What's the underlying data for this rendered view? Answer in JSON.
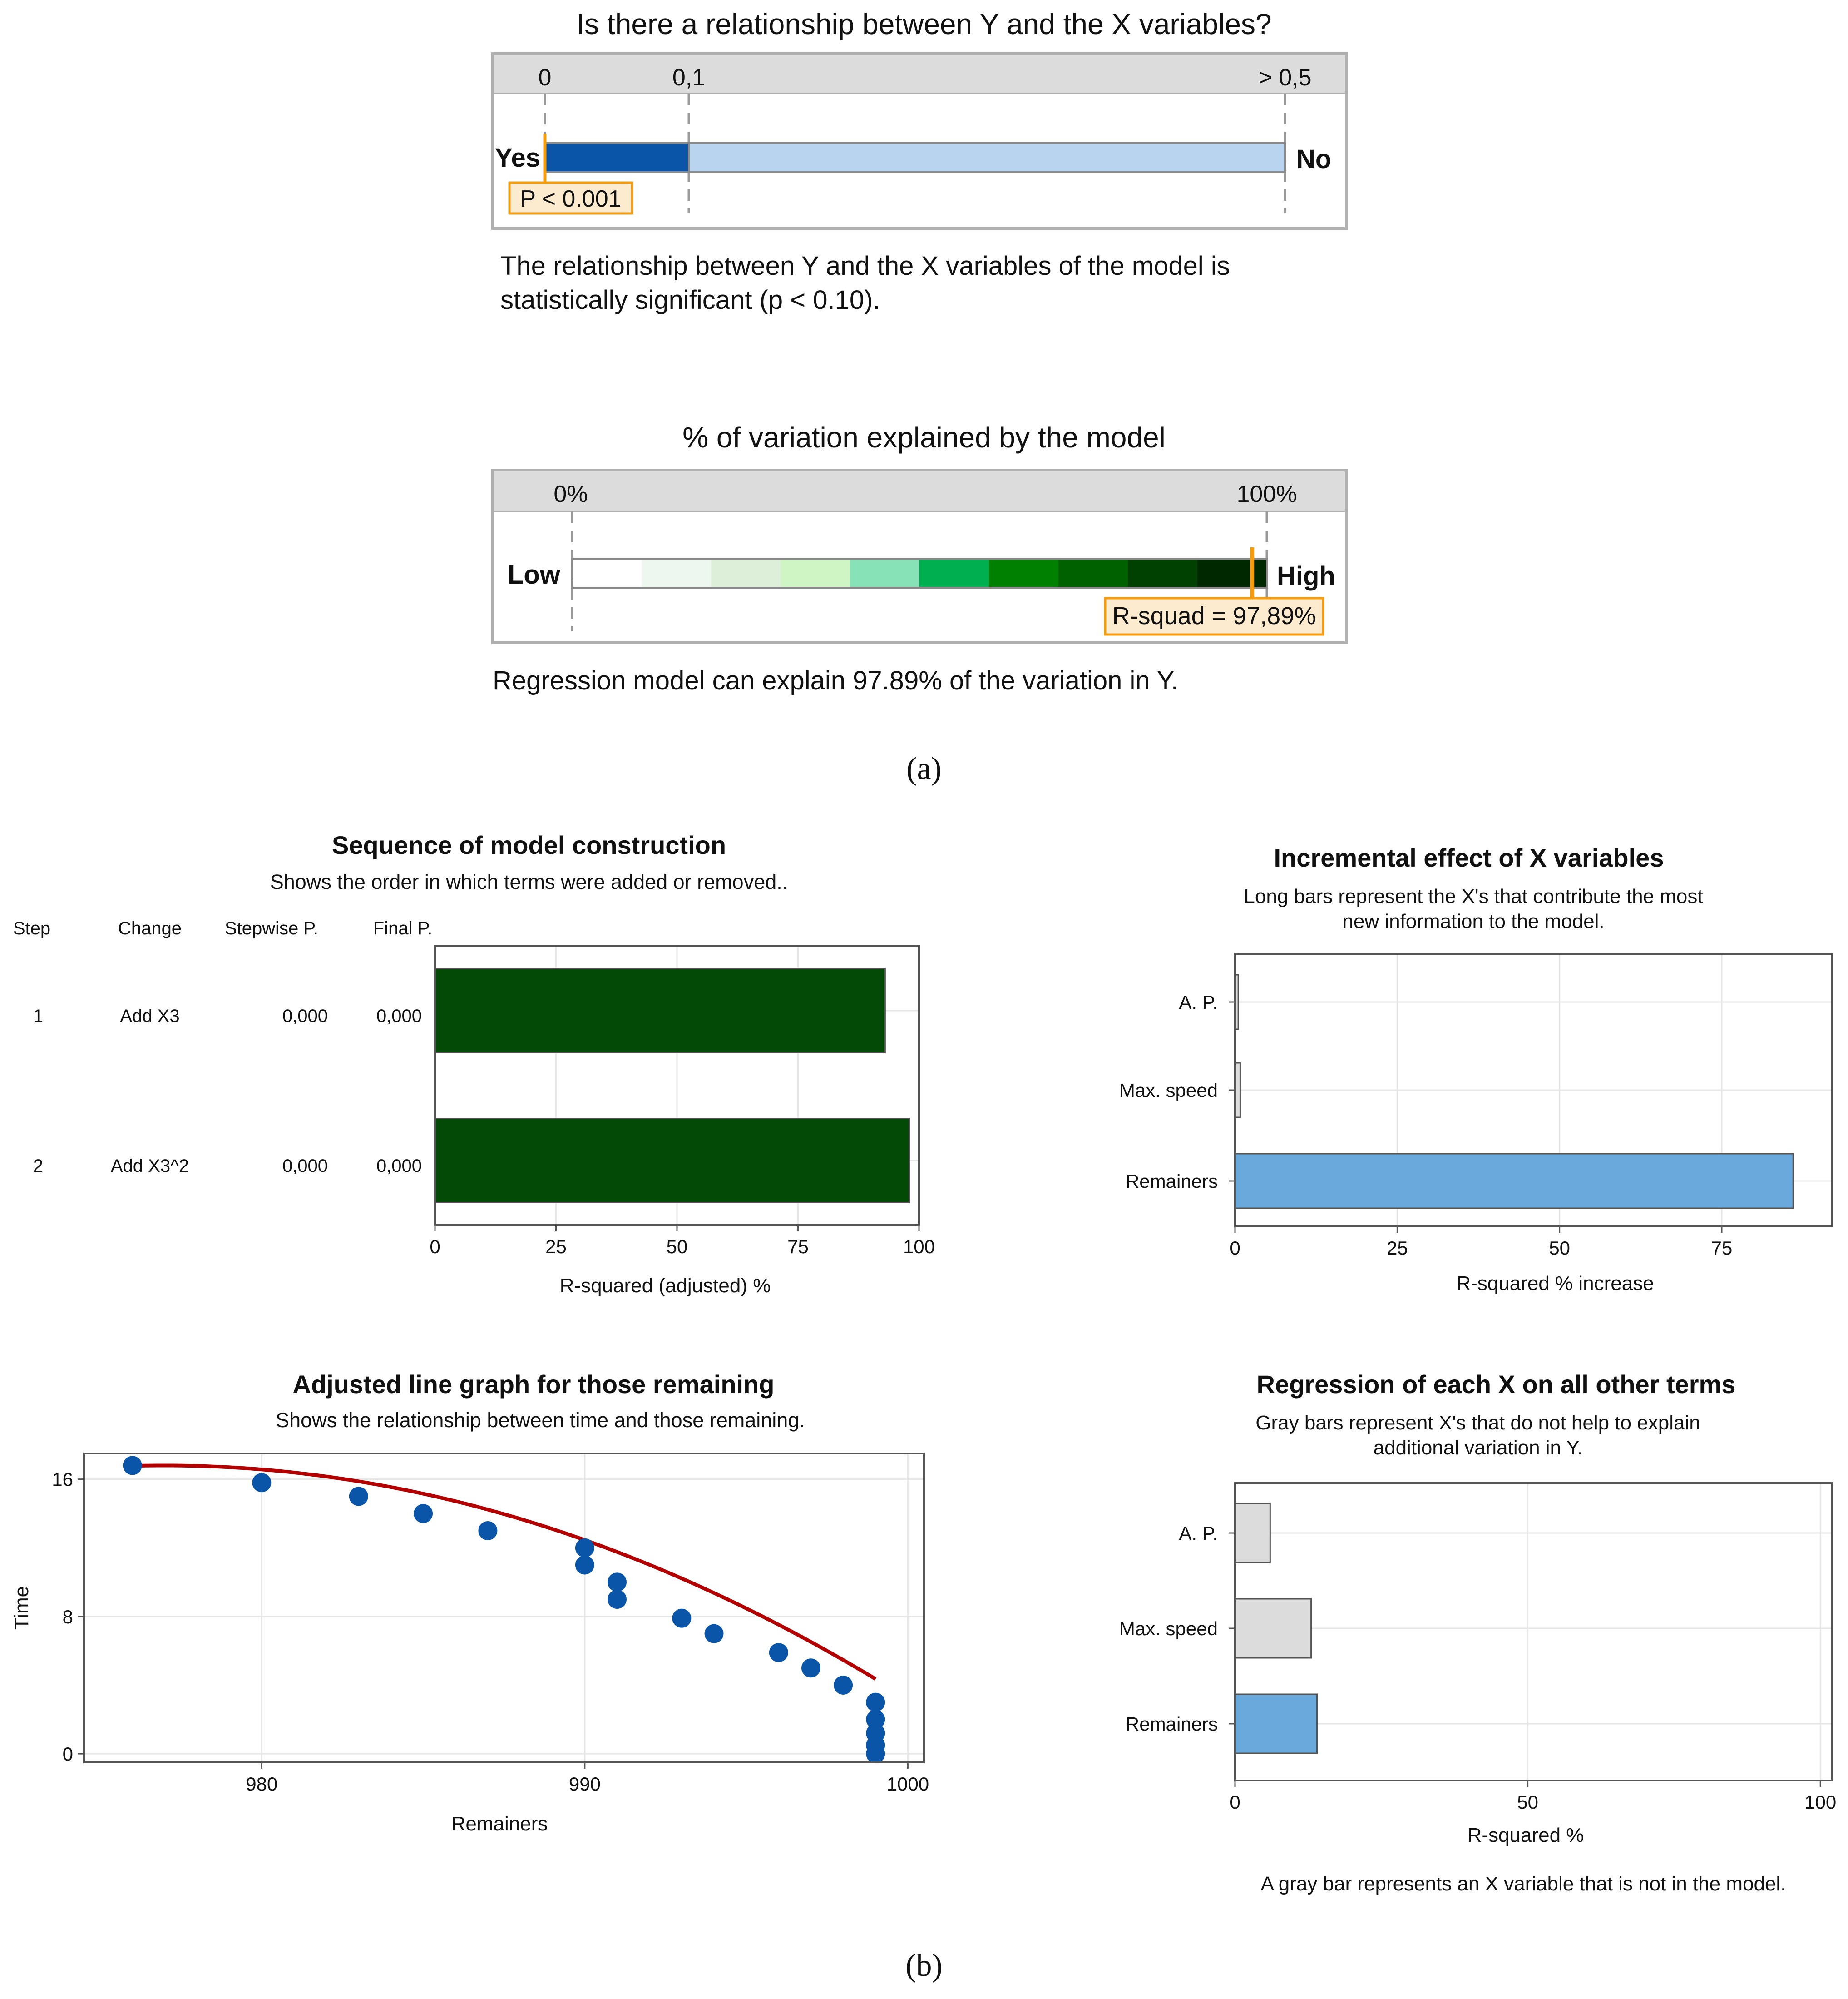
{
  "panel_a": {
    "label": "(a)",
    "significance": {
      "title": "Is there a relationship between Y and the X variables?",
      "ticks": [
        "0",
        "0,1",
        "> 0,5"
      ],
      "left_label": "Yes",
      "right_label": "No",
      "p_label": "P < 0.001",
      "p_value": 0.001,
      "threshold": 0.1,
      "description_line1": "The relationship between Y and the X variables of the model is",
      "description_line2": "statistically significant (p < 0.10).",
      "colors": {
        "dark": "#0a55a8",
        "light": "#b9d4ef",
        "marker": "#f39c12",
        "marker_bg": "#fdebd0"
      }
    },
    "variation": {
      "title": "% of variation explained by the model",
      "ticks": [
        "0%",
        "100%"
      ],
      "left_label": "Low",
      "right_label": "High",
      "r_label": "R-squad = 97,89%",
      "r_squared": 97.89,
      "description": "Regression model can explain 97.89% of the variation in Y.",
      "gradient": [
        "#ffffff",
        "#eef7ef",
        "#ddeed9",
        "#cff5c4",
        "#88e2b8",
        "#00b050",
        "#008000",
        "#006100",
        "#004000",
        "#002800"
      ]
    }
  },
  "panel_b": {
    "label": "(b)",
    "footnote": "A gray bar represents an X variable that is not in the model."
  },
  "chart_data": [
    {
      "type": "bar",
      "orientation": "horizontal",
      "title": "Sequence of model construction",
      "subtitle": "Shows the order in which terms were added or removed..",
      "columns": [
        "Step",
        "Change",
        "Stepwise P.",
        "Final P."
      ],
      "rows": [
        {
          "step": "1",
          "change": "Add X3",
          "stepwise_p": "0,000",
          "final_p": "0,000",
          "value": 93
        },
        {
          "step": "2",
          "change": "Add X3^2",
          "stepwise_p": "0,000",
          "final_p": "0,000",
          "value": 98
        }
      ],
      "xlabel": "R-squared (adjusted) %",
      "xlim": [
        0,
        100
      ],
      "xticks": [
        "0",
        "25",
        "50",
        "75",
        "100"
      ],
      "bar_color": "#034a06"
    },
    {
      "type": "bar",
      "orientation": "horizontal",
      "title": "Incremental effect of X variables",
      "subtitle_line1": "Long bars represent the X's that contribute the most",
      "subtitle_line2": "new information to the model.",
      "categories": [
        "A. P.",
        "Max. speed",
        "Remainers"
      ],
      "values": [
        0.5,
        0.8,
        86
      ],
      "in_model": [
        false,
        false,
        true
      ],
      "xlabel": "R-squared % increase",
      "xlim": [
        0,
        92
      ],
      "xticks": [
        "0",
        "25",
        "50",
        "75"
      ],
      "colors": {
        "in_model": "#69a9dc",
        "not_in_model": "#dcdcdc"
      }
    },
    {
      "type": "scatter",
      "title": "Adjusted line graph for those remaining",
      "subtitle": "Shows the relationship between time and those remaining.",
      "xlabel": "Remainers",
      "ylabel": "Time",
      "xlim": [
        974.5,
        1000.5
      ],
      "ylim": [
        -0.5,
        17.5
      ],
      "xticks": [
        "980",
        "990",
        "1000"
      ],
      "yticks": [
        "0",
        "8",
        "16"
      ],
      "x": [
        976,
        980,
        983,
        985,
        987,
        990,
        990,
        991,
        991,
        993,
        994,
        996,
        997,
        998,
        999,
        999,
        999,
        999,
        999
      ],
      "y": [
        16.8,
        15.8,
        15,
        14,
        13,
        12,
        11,
        10,
        9,
        7.9,
        7,
        5.9,
        5,
        4,
        3,
        2,
        1.2,
        0.5,
        0
      ],
      "fit_line": {
        "equation": "y = 16.8 - 0.0257*(x-977)^2",
        "x_range": [
          976,
          999
        ],
        "color": "#b30000"
      },
      "point_color": "#0a55a8"
    },
    {
      "type": "bar",
      "orientation": "horizontal",
      "title": "Regression of each X on all other terms",
      "subtitle_line1": "Gray bars represent X's that do not help to explain",
      "subtitle_line2": "additional variation in Y.",
      "categories": [
        "A. P.",
        "Max. speed",
        "Remainers"
      ],
      "values": [
        6,
        13,
        14
      ],
      "in_model": [
        false,
        false,
        true
      ],
      "xlabel": "R-squared %",
      "xlim": [
        0,
        102
      ],
      "xticks": [
        "0",
        "50",
        "100"
      ],
      "colors": {
        "in_model": "#69a9dc",
        "not_in_model": "#dcdcdc"
      }
    }
  ]
}
